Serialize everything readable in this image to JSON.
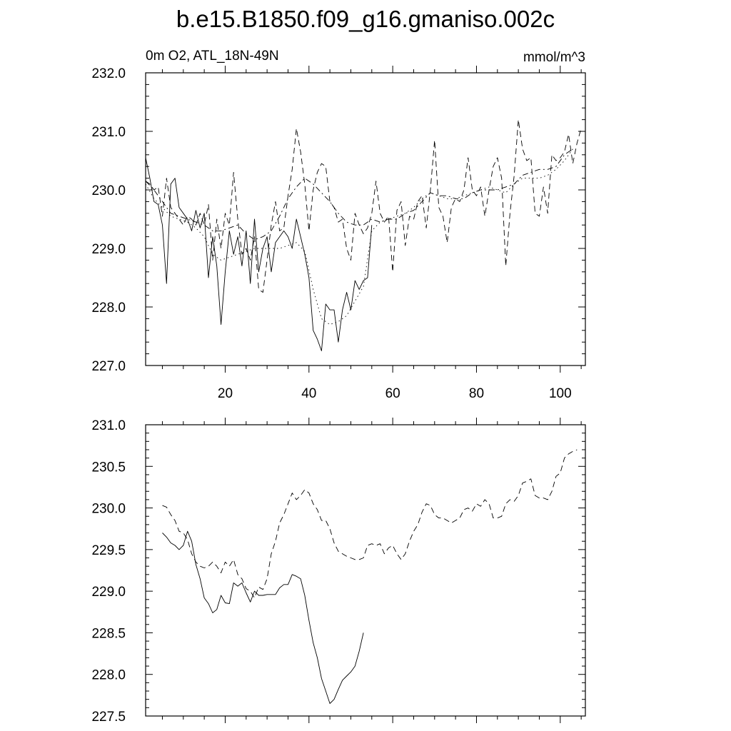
{
  "figure": {
    "title": "b.e15.B1850.f09_g16.gmaniso.002c",
    "left_label": "0m O2, ATL_18N-49N",
    "right_label": "mmol/m^3"
  },
  "chart_data": [
    {
      "type": "line",
      "xlim": [
        1,
        106
      ],
      "ylim": [
        227.0,
        232.0
      ],
      "xticks": [
        20,
        40,
        60,
        80,
        100
      ],
      "xtick_labels": [
        "20",
        "40",
        "60",
        "80",
        "100"
      ],
      "yticks": [
        227.0,
        228.0,
        229.0,
        230.0,
        231.0,
        232.0
      ],
      "ytick_labels": [
        "227.0",
        "228.0",
        "229.0",
        "230.0",
        "231.0",
        "232.0"
      ],
      "grid": false,
      "series": [
        {
          "style": "solid",
          "x": [
            1,
            2,
            3,
            4,
            5,
            6,
            7,
            8,
            9,
            10,
            11,
            12,
            13,
            14,
            15,
            16,
            17,
            18,
            19,
            20,
            21,
            22,
            23,
            24,
            25,
            26,
            27,
            28,
            29,
            30,
            31,
            32,
            33,
            34,
            35,
            36,
            37,
            38,
            39,
            40,
            41,
            42,
            43,
            44,
            45,
            46,
            47,
            48,
            49,
            50,
            51,
            52,
            53,
            54,
            55
          ],
          "y": [
            230.55,
            230.2,
            229.8,
            229.75,
            229.4,
            228.4,
            230.1,
            230.2,
            229.7,
            229.6,
            229.5,
            229.3,
            229.65,
            229.35,
            229.6,
            228.5,
            229.2,
            228.7,
            227.7,
            228.6,
            229.3,
            228.9,
            229.2,
            228.7,
            229.3,
            228.4,
            229.5,
            228.6,
            229.0,
            229.2,
            228.6,
            229.1,
            229.2,
            229.3,
            229.2,
            229.0,
            229.5,
            229.2,
            228.9,
            228.5,
            227.6,
            227.45,
            227.25,
            228.05,
            227.95,
            227.95,
            227.4,
            227.95,
            228.25,
            227.95,
            228.45,
            228.3,
            228.45,
            228.5,
            229.4
          ]
        },
        {
          "style": "dashed",
          "x": [
            1,
            2,
            3,
            4,
            5,
            6,
            7,
            8,
            9,
            10,
            11,
            12,
            13,
            14,
            15,
            16,
            17,
            18,
            19,
            20,
            21,
            22,
            23,
            24,
            25,
            26,
            27,
            28,
            29,
            30,
            31,
            32,
            33,
            34,
            35,
            36,
            37,
            38,
            39,
            40,
            41,
            42,
            43,
            44,
            45,
            46,
            47,
            48,
            49,
            50,
            51,
            52,
            53,
            54,
            55,
            56,
            57,
            58,
            59,
            60,
            61,
            62,
            63,
            64,
            65,
            66,
            67,
            68,
            69,
            70,
            71,
            72,
            73,
            74,
            75,
            76,
            77,
            78,
            79,
            80,
            81,
            82,
            83,
            84,
            85,
            86,
            87,
            88,
            89,
            90,
            91,
            92,
            93,
            94,
            95,
            96,
            97,
            98,
            99,
            100,
            101,
            102,
            103,
            104,
            105
          ],
          "y": [
            230.15,
            230.1,
            230.0,
            230.05,
            229.55,
            230.2,
            229.7,
            229.6,
            229.5,
            229.4,
            229.55,
            229.5,
            229.4,
            229.6,
            229.4,
            229.75,
            228.8,
            229.5,
            229.0,
            229.6,
            229.4,
            230.3,
            229.5,
            228.9,
            229.0,
            228.8,
            229.2,
            228.3,
            228.25,
            228.8,
            229.4,
            229.8,
            229.3,
            229.35,
            229.9,
            230.35,
            231.05,
            230.65,
            230.1,
            229.3,
            230.0,
            230.3,
            230.45,
            230.4,
            229.8,
            229.7,
            229.45,
            229.5,
            229.0,
            228.8,
            229.6,
            229.4,
            229.25,
            229.35,
            229.6,
            230.15,
            229.6,
            229.45,
            229.55,
            228.6,
            229.65,
            229.8,
            229.05,
            229.55,
            229.5,
            229.8,
            229.9,
            229.35,
            230.0,
            230.85,
            229.7,
            229.55,
            229.1,
            229.7,
            229.85,
            229.8,
            230.0,
            230.55,
            230.0,
            229.9,
            230.05,
            229.55,
            230.0,
            230.4,
            230.55,
            230.2,
            228.7,
            229.6,
            230.25,
            231.2,
            230.7,
            230.5,
            230.55,
            229.6,
            229.55,
            230.05,
            229.6,
            230.6,
            230.5,
            230.55,
            230.65,
            230.95,
            230.45,
            230.8,
            231.05
          ]
        },
        {
          "style": "dotted",
          "x": [
            1,
            3,
            5,
            7,
            9,
            11,
            13,
            15,
            17,
            19,
            21,
            23,
            25,
            27,
            29,
            31,
            33,
            35,
            37,
            39,
            41,
            43,
            45,
            47,
            49,
            51,
            53,
            55,
            57,
            59,
            61,
            63,
            65,
            67,
            69,
            71,
            73,
            75,
            77,
            79,
            81,
            83,
            85,
            87,
            89,
            91,
            93,
            95,
            97,
            99,
            101,
            103
          ],
          "y": [
            230.1,
            229.85,
            229.7,
            229.55,
            229.5,
            229.45,
            229.35,
            229.2,
            228.9,
            228.8,
            228.85,
            228.9,
            228.95,
            229.0,
            229.0,
            229.0,
            229.0,
            229.05,
            229.1,
            228.95,
            228.3,
            227.8,
            227.7,
            227.75,
            227.85,
            228.1,
            228.35,
            229.3,
            229.45,
            229.5,
            229.55,
            229.6,
            229.7,
            229.85,
            229.95,
            229.9,
            229.85,
            229.85,
            229.9,
            229.95,
            230.0,
            230.05,
            230.0,
            229.95,
            230.1,
            230.2,
            230.2,
            230.2,
            230.25,
            230.35,
            230.5,
            230.7
          ]
        },
        {
          "style": "dash-dot",
          "x": [
            1,
            3,
            5,
            7,
            9,
            11,
            13,
            15,
            17,
            19,
            21,
            23,
            25,
            27,
            29,
            31,
            33,
            35,
            37,
            39,
            41,
            43,
            45,
            47,
            49,
            51,
            53,
            55,
            57,
            59,
            61,
            63,
            65,
            67,
            69,
            71,
            73,
            75,
            77,
            79,
            81,
            83,
            85,
            87,
            89,
            91,
            93,
            95,
            97,
            99,
            101,
            103
          ],
          "y": [
            230.15,
            230.0,
            229.8,
            229.6,
            229.55,
            229.5,
            229.45,
            229.4,
            229.3,
            229.3,
            229.35,
            229.4,
            229.25,
            229.15,
            229.2,
            229.3,
            229.55,
            229.85,
            230.05,
            230.2,
            230.1,
            229.95,
            229.8,
            229.6,
            229.45,
            229.4,
            229.4,
            229.5,
            229.45,
            229.5,
            229.5,
            229.6,
            229.65,
            229.8,
            229.95,
            229.9,
            229.9,
            229.85,
            229.85,
            229.95,
            230.0,
            230.0,
            230.0,
            230.05,
            230.1,
            230.25,
            230.3,
            230.35,
            230.35,
            230.4,
            230.6,
            230.7
          ]
        }
      ]
    },
    {
      "type": "line",
      "xlim": [
        1,
        106
      ],
      "ylim": [
        227.5,
        231.0
      ],
      "xticks": [
        20,
        40,
        60,
        80,
        100
      ],
      "xtick_labels": [
        "",
        "",
        "",
        "",
        ""
      ],
      "yticks": [
        227.5,
        228.0,
        228.5,
        229.0,
        229.5,
        230.0,
        230.5,
        231.0
      ],
      "ytick_labels": [
        "227.5",
        "228.0",
        "228.5",
        "229.0",
        "229.5",
        "230.0",
        "230.5",
        "231.0"
      ],
      "grid": false,
      "series": [
        {
          "style": "solid",
          "x": [
            5,
            6,
            7,
            8,
            9,
            10,
            11,
            12,
            13,
            14,
            15,
            16,
            17,
            18,
            19,
            20,
            21,
            22,
            23,
            24,
            25,
            26,
            27,
            28,
            29,
            30,
            31,
            32,
            33,
            34,
            35,
            36,
            37,
            38,
            39,
            40,
            41,
            42,
            43,
            44,
            45,
            46,
            47,
            48,
            49,
            50,
            51,
            52,
            53
          ],
          "y": [
            229.7,
            229.65,
            229.58,
            229.55,
            229.5,
            229.55,
            229.72,
            229.6,
            229.32,
            229.15,
            228.92,
            228.85,
            228.74,
            228.78,
            228.95,
            228.86,
            228.85,
            229.1,
            229.06,
            229.1,
            228.98,
            228.87,
            229.0,
            228.95,
            228.95,
            228.96,
            228.96,
            228.96,
            229.04,
            229.08,
            229.08,
            229.2,
            229.18,
            229.15,
            228.95,
            228.65,
            228.38,
            228.2,
            227.95,
            227.8,
            227.65,
            227.7,
            227.82,
            227.93,
            227.98,
            228.03,
            228.1,
            228.28,
            228.5
          ]
        },
        {
          "style": "dashed",
          "x": [
            5,
            6,
            7,
            8,
            9,
            10,
            11,
            12,
            13,
            14,
            15,
            16,
            17,
            18,
            19,
            20,
            21,
            22,
            23,
            24,
            25,
            26,
            27,
            28,
            29,
            30,
            31,
            32,
            33,
            34,
            35,
            36,
            37,
            38,
            39,
            40,
            41,
            42,
            43,
            44,
            45,
            46,
            47,
            48,
            49,
            50,
            51,
            52,
            53,
            54,
            55,
            56,
            57,
            58,
            59,
            60,
            61,
            62,
            63,
            64,
            65,
            66,
            67,
            68,
            69,
            70,
            71,
            72,
            73,
            74,
            75,
            76,
            77,
            78,
            79,
            80,
            81,
            82,
            83,
            84,
            85,
            86,
            87,
            88,
            89,
            90,
            91,
            92,
            93,
            94,
            95,
            96,
            97,
            98,
            99,
            100,
            101,
            102,
            103,
            104
          ],
          "y": [
            230.03,
            230.01,
            229.92,
            229.85,
            229.72,
            229.7,
            229.62,
            229.45,
            229.35,
            229.3,
            229.28,
            229.3,
            229.35,
            229.3,
            229.22,
            229.35,
            229.3,
            229.38,
            229.2,
            229.15,
            229.03,
            229.0,
            228.92,
            229.05,
            229.02,
            229.15,
            229.45,
            229.6,
            229.82,
            229.92,
            230.05,
            230.18,
            230.1,
            230.15,
            230.22,
            230.18,
            230.05,
            229.98,
            229.85,
            229.85,
            229.75,
            229.58,
            229.48,
            229.45,
            229.42,
            229.4,
            229.38,
            229.38,
            229.4,
            229.55,
            229.57,
            229.55,
            229.57,
            229.45,
            229.52,
            229.55,
            229.45,
            229.38,
            229.45,
            229.6,
            229.72,
            229.8,
            229.95,
            230.05,
            230.03,
            229.92,
            229.88,
            229.88,
            229.85,
            229.82,
            229.85,
            229.88,
            229.98,
            230.0,
            229.96,
            230.05,
            230.02,
            230.1,
            230.05,
            229.88,
            229.88,
            229.9,
            230.05,
            230.1,
            230.08,
            230.15,
            230.3,
            230.32,
            230.35,
            230.15,
            230.12,
            230.12,
            230.1,
            230.2,
            230.38,
            230.42,
            230.6,
            230.65,
            230.68,
            230.7
          ]
        }
      ]
    }
  ]
}
